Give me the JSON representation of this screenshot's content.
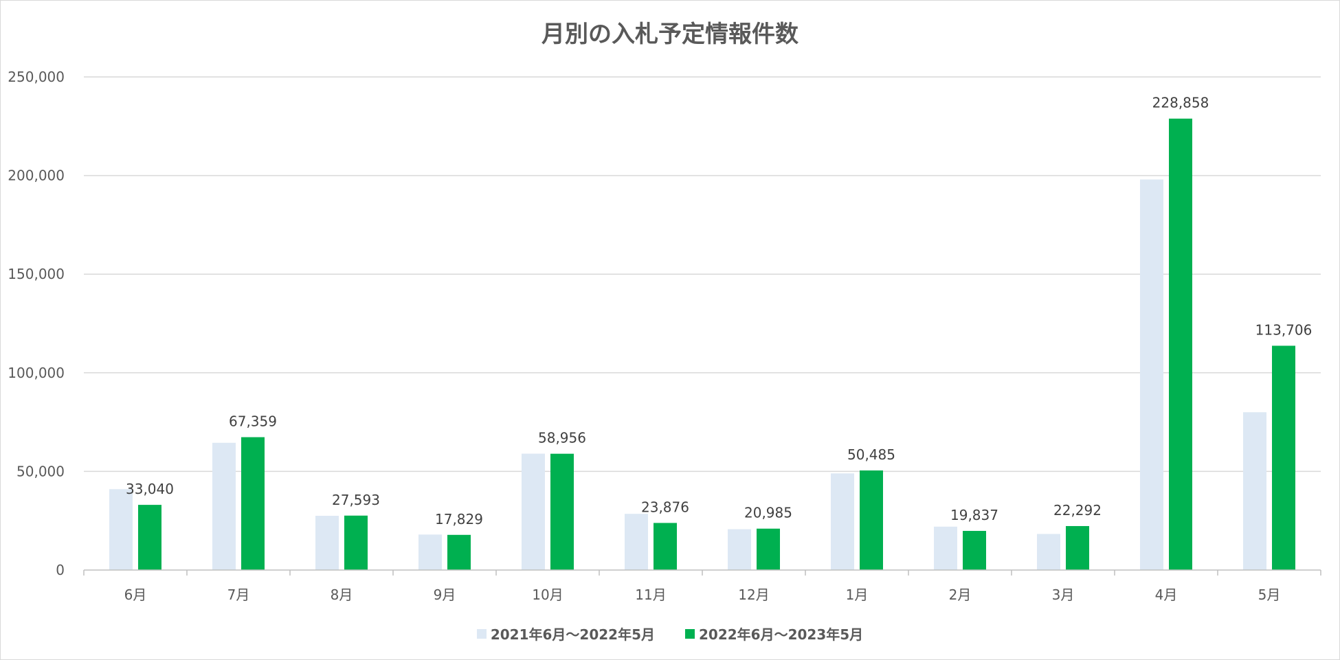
{
  "chart_data": {
    "type": "bar",
    "title": "月別の入札予定情報件数",
    "categories": [
      "6月",
      "7月",
      "8月",
      "9月",
      "10月",
      "11月",
      "12月",
      "1月",
      "2月",
      "3月",
      "4月",
      "5月"
    ],
    "ylim": [
      0,
      250000
    ],
    "yticks": [
      0,
      50000,
      100000,
      150000,
      200000,
      250000
    ],
    "ytick_labels": [
      "0",
      "50,000",
      "100,000",
      "150,000",
      "200,000",
      "250,000"
    ],
    "grid": true,
    "legend_position": "bottom",
    "series": [
      {
        "name": "2021年6月～2022年5月",
        "color": "#dde8f4",
        "values": [
          41000,
          64500,
          27500,
          18000,
          59000,
          28500,
          20700,
          49000,
          22000,
          18300,
          198000,
          80000
        ],
        "labels_shown": false
      },
      {
        "name": "2022年6月～2023年5月",
        "color": "#00b050",
        "values": [
          33040,
          67359,
          27593,
          17829,
          58956,
          23876,
          20985,
          50485,
          19837,
          22292,
          228858,
          113706
        ],
        "data_labels": [
          "33,040",
          "67,359",
          "27,593",
          "17,829",
          "58,956",
          "23,876",
          "20,985",
          "50,485",
          "19,837",
          "22,292",
          "228,858",
          "113,706"
        ],
        "labels_shown": true
      }
    ]
  }
}
